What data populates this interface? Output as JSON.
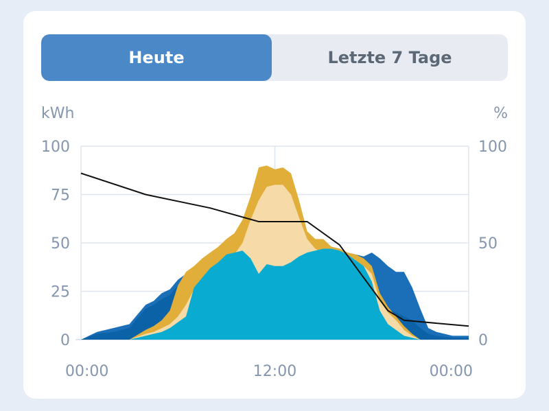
{
  "tabs": [
    {
      "label": "Heute",
      "active": true
    },
    {
      "label": "Letzte 7 Tage",
      "active": false
    }
  ],
  "colors": {
    "card": "#ffffff",
    "background": "#e6edf6",
    "tab_active": "#4a88c8",
    "tab_inactive": "#e8ecf2",
    "axis_text": "#8496ad",
    "grid": "#dfe5ee",
    "consumption_dark": "#1a6fb8",
    "grid_import": "#0b62a6",
    "solar_total": "#e2ae3a",
    "solar_light": "#f6dba9",
    "self_consumption": "#09acd0",
    "battery_line": "#111111"
  },
  "chart_data": {
    "type": "area",
    "ylabel_left": "kWh",
    "ylabel_right": "%",
    "ylim": [
      0,
      100
    ],
    "ylim_right": [
      0,
      100
    ],
    "yticks": [
      "0",
      "25",
      "50",
      "75",
      "100"
    ],
    "yticks_right": [
      "0",
      "50",
      "100"
    ],
    "xticks": [
      {
        "hour": 0,
        "label": "00:00"
      },
      {
        "hour": 12,
        "label": "12:00"
      },
      {
        "hour": 24,
        "label": "00:00"
      }
    ],
    "grid": true,
    "x_hours": [
      0,
      1,
      2,
      3,
      4,
      4.5,
      5,
      5.5,
      6,
      6.5,
      7,
      7.5,
      8,
      8.5,
      9,
      9.5,
      10,
      10.5,
      11,
      11.5,
      12,
      12.5,
      13,
      13.5,
      14,
      14.5,
      15,
      15.5,
      16,
      16.5,
      17,
      17.5,
      18,
      18.5,
      19,
      19.5,
      20,
      20.5,
      21,
      21.5,
      22,
      23,
      24
    ],
    "series": [
      {
        "values": [
          0,
          4,
          6,
          8,
          18,
          20,
          24,
          26,
          31,
          34,
          38,
          38,
          42,
          44,
          48,
          50,
          53,
          60,
          67,
          71,
          62,
          57,
          64,
          56,
          55,
          50,
          48,
          48,
          47,
          45,
          44,
          43,
          45,
          42,
          38,
          35,
          35,
          27,
          16,
          6,
          4,
          2,
          2
        ]
      },
      {
        "values": [
          0,
          3,
          4,
          6,
          16,
          18,
          21,
          23,
          28,
          32,
          35,
          35,
          40,
          43,
          45,
          46,
          46,
          46,
          43,
          44,
          40,
          40,
          40,
          41,
          42,
          44,
          45,
          46,
          46,
          44,
          42,
          42,
          38,
          20,
          16,
          14,
          12,
          10,
          6,
          3,
          2,
          1,
          1
        ]
      },
      {
        "values": [
          0,
          0,
          0,
          0,
          5,
          7,
          10,
          15,
          28,
          35,
          38,
          42,
          45,
          48,
          52,
          55,
          62,
          74,
          89,
          90,
          88,
          89,
          86,
          72,
          56,
          52,
          52,
          48,
          47,
          45,
          44,
          42,
          38,
          24,
          17,
          12,
          7,
          3,
          0,
          0,
          0,
          0,
          0
        ]
      },
      {
        "values": [
          0,
          0,
          0,
          0,
          3,
          4,
          6,
          8,
          12,
          18,
          26,
          30,
          35,
          38,
          41,
          44,
          50,
          62,
          72,
          79,
          80,
          80,
          75,
          63,
          52,
          47,
          45,
          44,
          43,
          42,
          40,
          38,
          34,
          20,
          14,
          10,
          5,
          2,
          0,
          0,
          0,
          0,
          0
        ]
      },
      {
        "values": [
          0,
          0,
          0,
          0,
          2,
          3,
          4,
          6,
          9,
          12,
          27,
          32,
          37,
          40,
          44,
          45,
          46,
          42,
          34,
          39,
          38,
          38,
          40,
          43,
          45,
          46,
          47,
          47,
          46,
          44,
          41,
          38,
          30,
          15,
          8,
          5,
          2,
          1,
          0,
          0,
          0,
          0,
          0
        ]
      },
      {
        "axis": "right",
        "x_hours": [
          0,
          4,
          8,
          11,
          12,
          14,
          16,
          19,
          20,
          24
        ],
        "values": [
          86,
          75,
          68,
          61,
          61,
          61,
          49,
          15,
          10,
          7
        ]
      }
    ]
  }
}
